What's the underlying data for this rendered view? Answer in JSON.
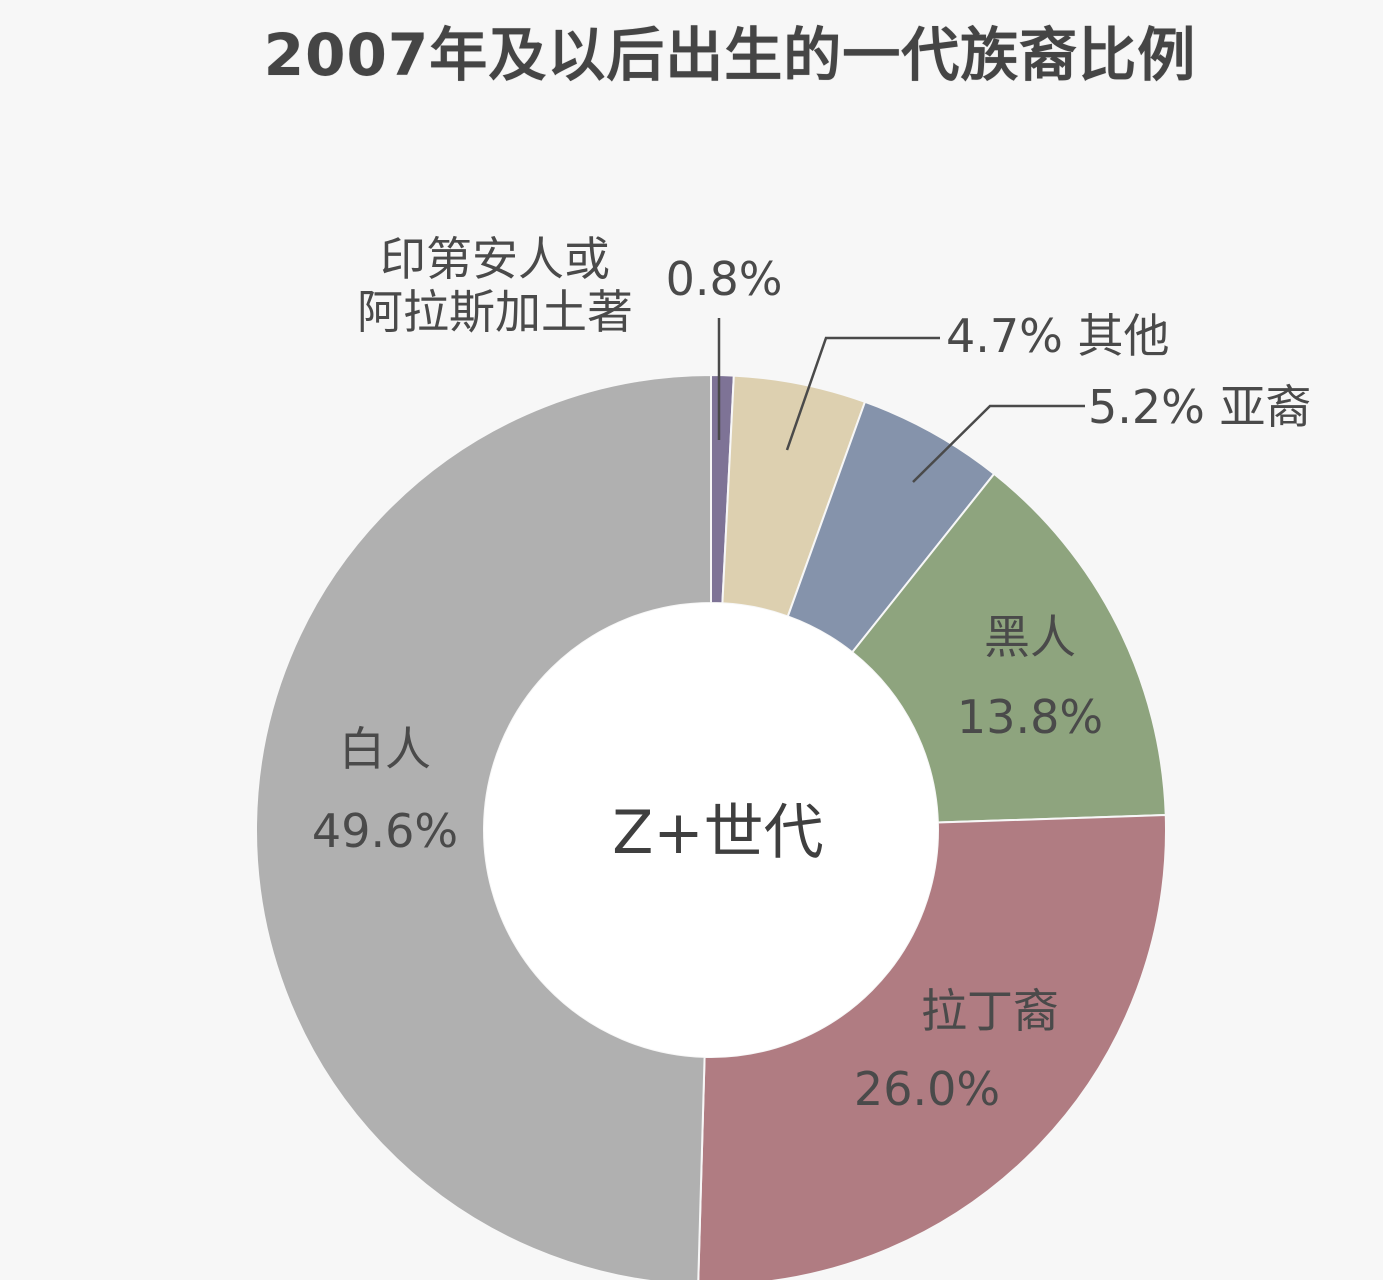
{
  "chart_data": {
    "type": "pie",
    "title": "2007年及以后出生的一代族裔比例",
    "center_label": "Z+世代",
    "slices": [
      {
        "name": "印第安人或阿拉斯加土著",
        "name_lines": [
          "印第安人或",
          "阿拉斯加土著"
        ],
        "value": 0.8,
        "value_label": "0.8%",
        "color": "#7e7396"
      },
      {
        "name": "其他",
        "value": 4.7,
        "value_label": "4.7%",
        "color": "#ddd0b0"
      },
      {
        "name": "亚裔",
        "value": 5.2,
        "value_label": "5.2%",
        "color": "#8593ab"
      },
      {
        "name": "黑人",
        "value": 13.8,
        "value_label": "13.8%",
        "color": "#8ea47e"
      },
      {
        "name": "拉丁裔",
        "value": 26.0,
        "value_label": "26.0%",
        "color": "#b07c82"
      },
      {
        "name": "白人",
        "value": 49.6,
        "value_label": "49.6%",
        "color": "#b0b0b0"
      }
    ]
  }
}
